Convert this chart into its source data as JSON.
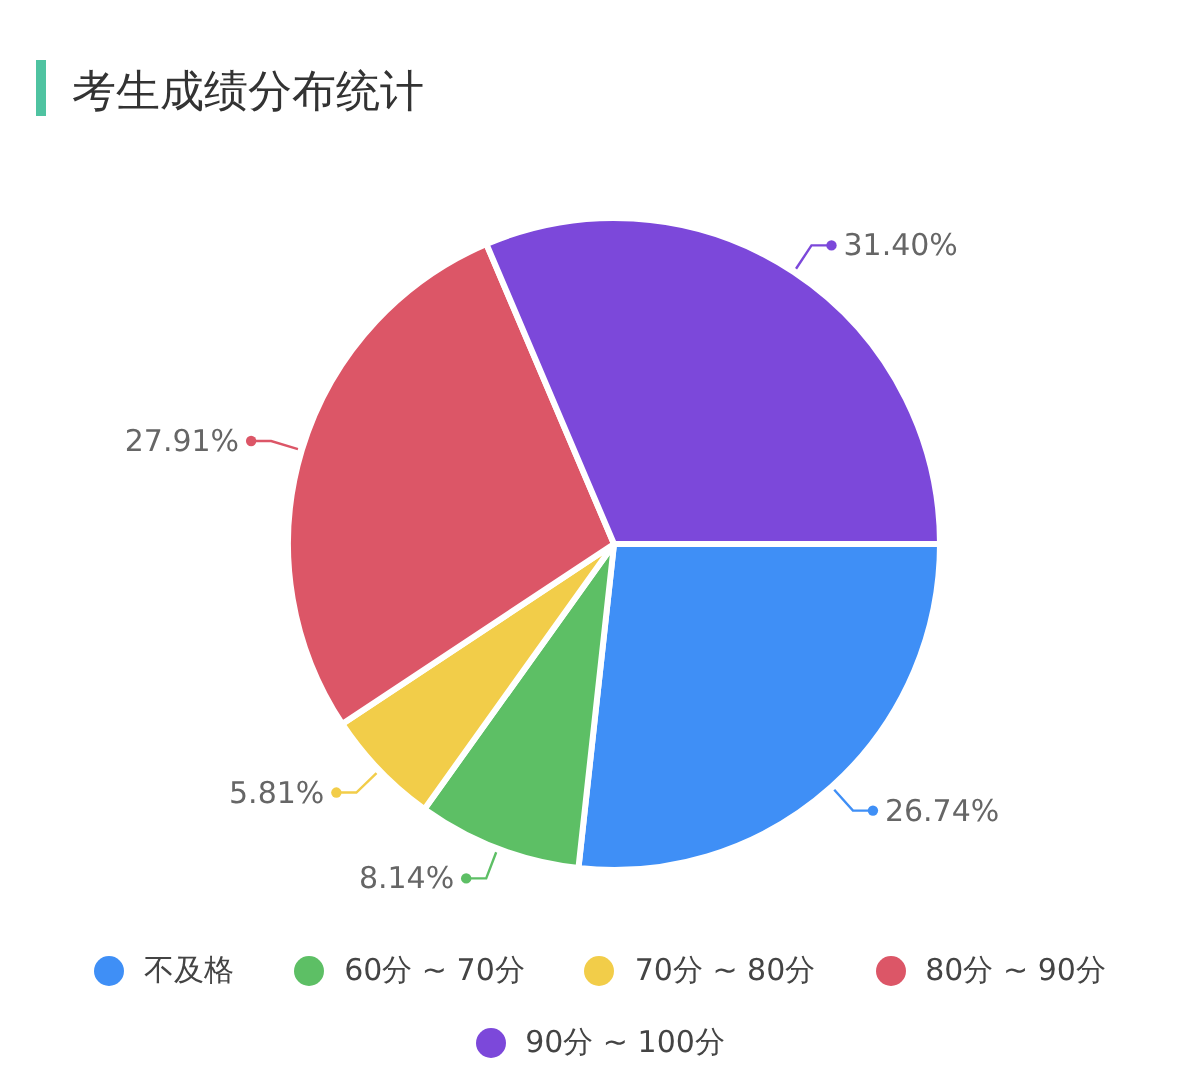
{
  "chart_data": {
    "type": "pie",
    "title": "考生成绩分布统计",
    "categories": [
      "不及格",
      "60分 ~ 70分",
      "70分 ~ 80分",
      "80分 ~ 90分",
      "90分 ~ 100分"
    ],
    "values": [
      26.74,
      8.14,
      5.81,
      27.91,
      31.4
    ],
    "value_labels": [
      "26.74%",
      "8.14%",
      "5.81%",
      "27.91%",
      "31.40%"
    ],
    "colors": [
      "#3f8ff6",
      "#5dbf65",
      "#f2cd49",
      "#dc5667",
      "#7c48da"
    ],
    "legend": "bottom"
  }
}
